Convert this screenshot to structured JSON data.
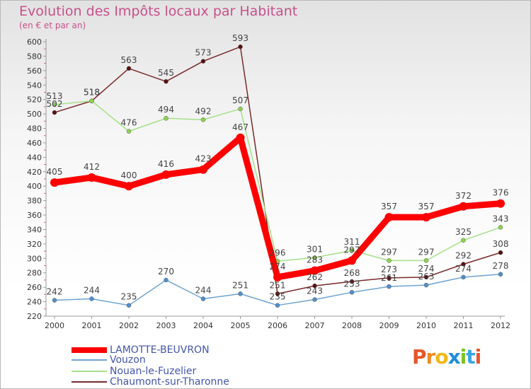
{
  "header": {
    "title": "Evolution des Impôts locaux par Habitant",
    "subtitle": "(en € et par an)"
  },
  "colors": {
    "title": "#c8508a",
    "legend_text": "#4455aa",
    "axis": "#999999",
    "value_label": "#444444"
  },
  "logo": {
    "text": "Proxiti",
    "letters": [
      "P",
      "r",
      "o",
      "x",
      "i",
      "t",
      "i"
    ],
    "colors": [
      "#e6562a",
      "#f08a22",
      "#f2b718",
      "#1c8fd8",
      "#7cc324",
      "#36a7e0",
      "#e6562a"
    ]
  },
  "chart_data": {
    "type": "line",
    "title": "Evolution des Impôts locaux par Habitant",
    "subtitle": "(en € et par an)",
    "xlabel": "",
    "ylabel": "",
    "x": [
      "2000",
      "2001",
      "2002",
      "2003",
      "2004",
      "2005",
      "2006",
      "2007",
      "2008",
      "2009",
      "2010",
      "2011",
      "2012"
    ],
    "ylim": [
      220,
      600
    ],
    "yticks": [
      220,
      240,
      260,
      280,
      300,
      320,
      340,
      360,
      380,
      400,
      420,
      440,
      460,
      480,
      500,
      520,
      540,
      560,
      580,
      600
    ],
    "grid": false,
    "legend_position": "bottom-left",
    "series": [
      {
        "name": "Chaumont-sur-Tharonne",
        "color": "#7a2a2a",
        "marker": "#5a1010",
        "width": "thin",
        "values": [
          502,
          518,
          563,
          545,
          573,
          593,
          251,
          262,
          268,
          273,
          274,
          292,
          308
        ]
      },
      {
        "name": "Nouan-le-Fuzelier",
        "color": "#a6e08a",
        "marker": "#8ed44e",
        "width": "thin",
        "values": [
          513,
          518,
          476,
          494,
          492,
          507,
          296,
          301,
          311,
          297,
          297,
          325,
          343
        ]
      },
      {
        "name": "Vouzon",
        "color": "#6fa3d0",
        "marker": "#4f8fd0",
        "width": "thin",
        "values": [
          242,
          244,
          235,
          270,
          244,
          251,
          235,
          243,
          253,
          261,
          263,
          274,
          278
        ]
      },
      {
        "name": "LAMOTTE-BEUVRON",
        "color": "#ff0000",
        "marker": "#ff0000",
        "width": "thick",
        "values": [
          405,
          412,
          400,
          416,
          423,
          467,
          274,
          283,
          297,
          357,
          357,
          372,
          376
        ]
      }
    ],
    "legend": [
      "LAMOTTE-BEUVRON",
      "Vouzon",
      "Nouan-le-Fuzelier",
      "Chaumont-sur-Tharonne"
    ]
  }
}
